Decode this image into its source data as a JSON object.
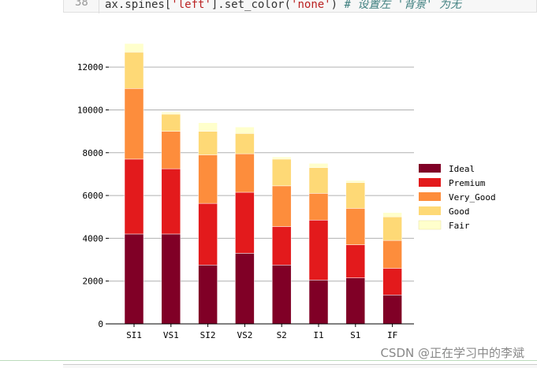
{
  "code": {
    "line_number": "38",
    "text_default_1": "ax.spines[",
    "text_string_1": "'left'",
    "text_default_2": "].set_color(",
    "text_string_2": "'none'",
    "text_default_3": ")  ",
    "text_comment": "# 设置左 '背景' 为无"
  },
  "watermark": "CSDN @正在学习中的李斌",
  "chart_data": {
    "type": "bar",
    "stacked": true,
    "categories": [
      "SI1",
      "VS1",
      "SI2",
      "VS2",
      "S2",
      "I1",
      "S1",
      "IF"
    ],
    "series": [
      {
        "name": "Ideal",
        "color": "#800026",
        "values": [
          4200,
          4200,
          2750,
          3300,
          2750,
          2050,
          2150,
          1350
        ]
      },
      {
        "name": "Premium",
        "color": "#e31a1c",
        "values": [
          3500,
          3050,
          2880,
          2850,
          1800,
          2800,
          1550,
          1250
        ]
      },
      {
        "name": "Very_Good",
        "color": "#fd8d3c",
        "values": [
          3300,
          1750,
          2270,
          1800,
          1900,
          1250,
          1700,
          1300
        ]
      },
      {
        "name": "Good",
        "color": "#fed976",
        "values": [
          1700,
          800,
          1100,
          950,
          1250,
          1200,
          1200,
          1100
        ]
      },
      {
        "name": "Fair",
        "color": "#ffffcc",
        "values": [
          400,
          100,
          400,
          300,
          100,
          200,
          100,
          200
        ]
      }
    ],
    "yticks": [
      "0",
      "2000",
      "4000",
      "6000",
      "8000",
      "10000",
      "12000"
    ],
    "ylim": [
      0,
      13000
    ],
    "grid": "horizontal",
    "legend": "right"
  }
}
